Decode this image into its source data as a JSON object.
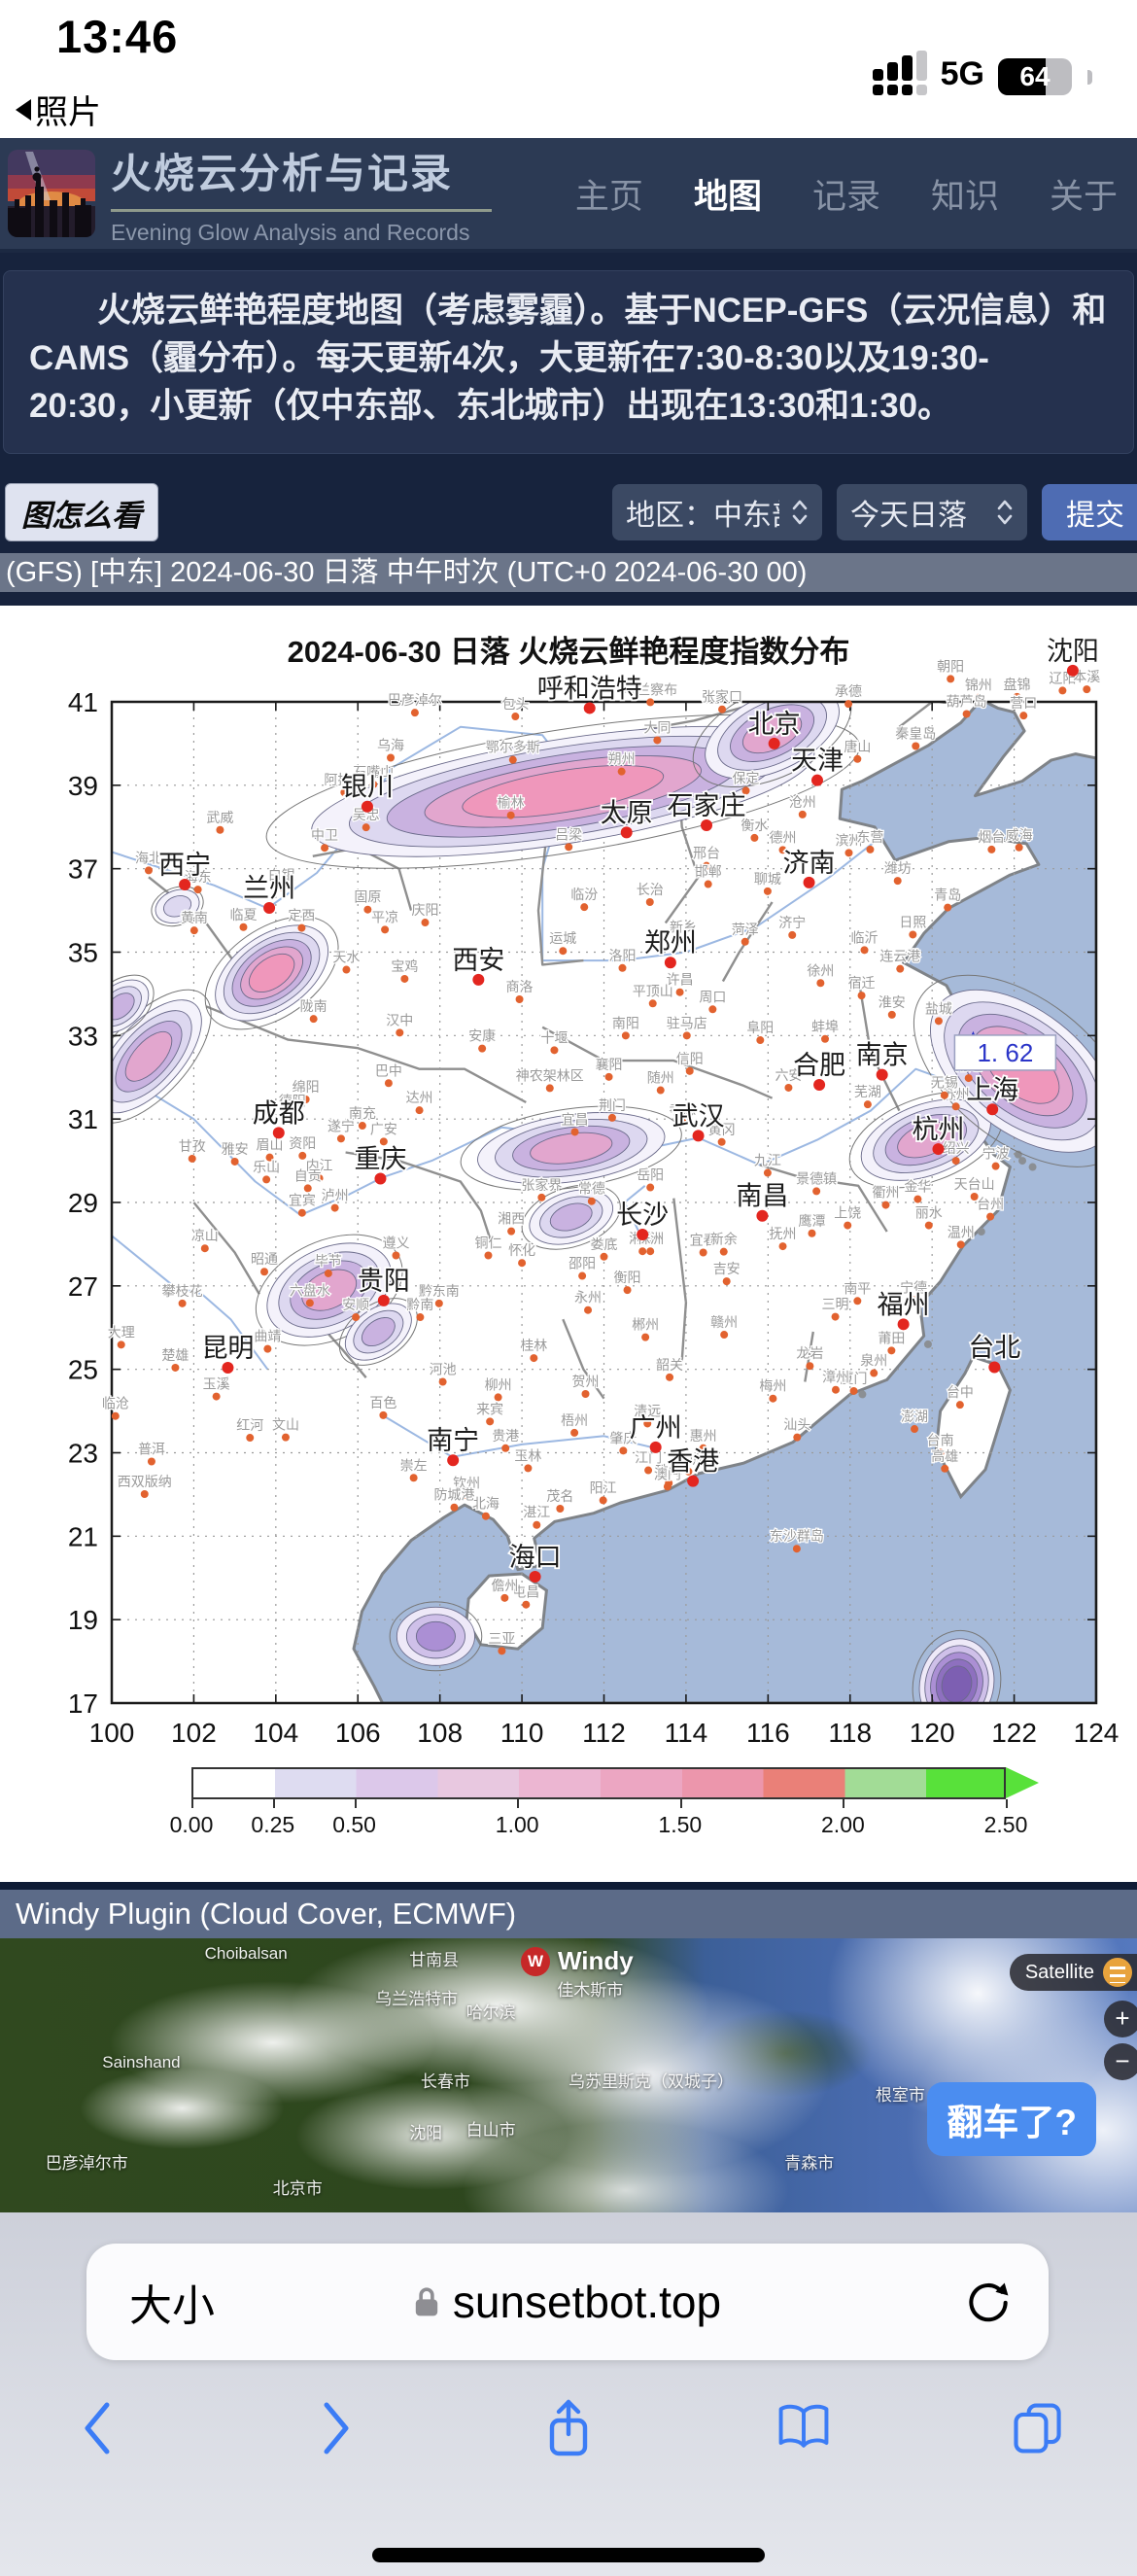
{
  "status_bar": {
    "time": "13:46",
    "back_app": "照片",
    "network": "5G",
    "battery": "64"
  },
  "header": {
    "site_title": "火烧云分析与记录",
    "site_subtitle": "Evening Glow Analysis and Records",
    "nav": [
      {
        "label": "主页",
        "active": false
      },
      {
        "label": "地图",
        "active": true
      },
      {
        "label": "记录",
        "active": false
      },
      {
        "label": "知识",
        "active": false
      },
      {
        "label": "关于",
        "active": false
      }
    ]
  },
  "notice": {
    "text": "火烧云鲜艳程度地图（考虑雾霾）。基于NCEP-GFS（云况信息）和CAMS（霾分布）。每天更新4次，大更新在7:30-8:30以及19:30-20:30，小更新（仅中东部、东北城市）出现在13:30和1:30。"
  },
  "controls": {
    "how_to_read": "图怎么看",
    "region_select": "地区：中东部",
    "time_select": "今天日落",
    "submit": "提交"
  },
  "status_line": {
    "text": "(GFS) [中东] 2024-06-30 日落 中午时次 (UTC+0 2024-06-30 00)"
  },
  "chart_data": {
    "type": "heatmap",
    "subtype": "contour-index-map",
    "title": "2024-06-30  日落  火烧云鲜艳程度指数分布",
    "xlabel": "",
    "ylabel": "",
    "lon_range": [
      100,
      124
    ],
    "lat_range": [
      17,
      41
    ],
    "lon_ticks": [
      100,
      102,
      104,
      106,
      108,
      110,
      112,
      114,
      116,
      118,
      120,
      122,
      124
    ],
    "lat_ticks": [
      41,
      39,
      37,
      35,
      33,
      31,
      29,
      27,
      25,
      23,
      21,
      19,
      17
    ],
    "grid": true,
    "colorbar": {
      "tick_labels": [
        "0.00",
        "0.25",
        "0.50",
        "1.00",
        "1.50",
        "2.00",
        "2.50"
      ],
      "tick_values": [
        0,
        0.25,
        0.5,
        1.0,
        1.5,
        2.0,
        2.5
      ],
      "max": 2.5,
      "segment_colors": [
        "#ffffff",
        "#dedcf1",
        "#dcc8ea",
        "#e8c8e0",
        "#ecb6d2",
        "#eca6c2",
        "#ec96ac",
        "#ea8078",
        "#a2dc96",
        "#58e13a"
      ]
    },
    "annotation": {
      "text": "1. 62",
      "lon": 120.55,
      "lat": 32.45,
      "marker_lon": 121.0,
      "marker_lat": 32.78
    },
    "major_cities": [
      [
        "沈阳",
        123.43,
        41.75
      ],
      [
        "呼和浩特",
        111.65,
        40.85
      ],
      [
        "北京",
        116.15,
        40.0
      ],
      [
        "天津",
        117.2,
        39.12
      ],
      [
        "银川",
        106.23,
        38.49
      ],
      [
        "太原",
        112.55,
        37.87
      ],
      [
        "石家庄",
        114.5,
        38.04
      ],
      [
        "济南",
        117.0,
        36.67
      ],
      [
        "西宁",
        101.78,
        36.62
      ],
      [
        "兰州",
        103.84,
        36.06
      ],
      [
        "郑州",
        113.62,
        34.75
      ],
      [
        "西安",
        108.94,
        34.34
      ],
      [
        "合肥",
        117.25,
        31.82
      ],
      [
        "南京",
        118.78,
        32.06
      ],
      [
        "上海",
        121.47,
        31.23
      ],
      [
        "杭州",
        120.15,
        30.28
      ],
      [
        "武汉",
        114.3,
        30.6
      ],
      [
        "成都",
        104.07,
        30.67
      ],
      [
        "重庆",
        106.55,
        29.57
      ],
      [
        "长沙",
        112.94,
        28.23
      ],
      [
        "南昌",
        115.86,
        28.68
      ],
      [
        "贵阳",
        106.63,
        26.65
      ],
      [
        "昆明",
        102.83,
        25.04
      ],
      [
        "福州",
        119.3,
        26.08
      ],
      [
        "台北",
        121.52,
        25.05
      ],
      [
        "南宁",
        108.32,
        22.82
      ],
      [
        "广州",
        113.26,
        23.13
      ],
      [
        "香港",
        114.17,
        22.32
      ],
      [
        "海口",
        110.32,
        20.03
      ]
    ],
    "minor_cities": [
      [
        "朝阳",
        120.45,
        41.55
      ],
      [
        "锦州",
        121.13,
        41.1
      ],
      [
        "盘锦",
        122.07,
        41.12
      ],
      [
        "辽阳",
        123.18,
        41.27
      ],
      [
        "本溪",
        123.77,
        41.3
      ],
      [
        "葫芦岛",
        120.84,
        40.71
      ],
      [
        "营口",
        122.23,
        40.67
      ],
      [
        "乌兰察布",
        113.13,
        40.99
      ],
      [
        "张家口",
        114.88,
        40.82
      ],
      [
        "承德",
        117.96,
        40.95
      ],
      [
        "包头",
        109.84,
        40.65
      ],
      [
        "巴彦淖尔",
        107.39,
        40.74
      ],
      [
        "秦皇岛",
        119.6,
        39.94
      ],
      [
        "唐山",
        118.18,
        39.63
      ],
      [
        "大同",
        113.3,
        40.08
      ],
      [
        "鄂尔多斯",
        109.78,
        39.61
      ],
      [
        "乌海",
        106.8,
        39.66
      ],
      [
        "石嘴山",
        106.38,
        39.02
      ],
      [
        "阿拉善",
        105.67,
        38.83
      ],
      [
        "榆林",
        109.73,
        38.28
      ],
      [
        "朔州",
        112.43,
        39.33
      ],
      [
        "保定",
        115.46,
        38.87
      ],
      [
        "沧州",
        116.84,
        38.3
      ],
      [
        "武威",
        102.64,
        37.93
      ],
      [
        "中卫",
        105.19,
        37.5
      ],
      [
        "吴忠",
        106.2,
        37.99
      ],
      [
        "衡水",
        115.67,
        37.74
      ],
      [
        "德州",
        116.36,
        37.45
      ],
      [
        "滨州",
        117.97,
        37.38
      ],
      [
        "东营",
        118.49,
        37.46
      ],
      [
        "烟台",
        121.45,
        37.46
      ],
      [
        "威海",
        122.12,
        37.51
      ],
      [
        "吕梁",
        111.14,
        37.52
      ],
      [
        "临汾",
        111.52,
        36.08
      ],
      [
        "长治",
        113.12,
        36.2
      ],
      [
        "邢台",
        114.5,
        37.07
      ],
      [
        "邯郸",
        114.54,
        36.63
      ],
      [
        "聊城",
        115.99,
        36.46
      ],
      [
        "潍坊",
        119.16,
        36.71
      ],
      [
        "青岛",
        120.38,
        36.07
      ],
      [
        "海北",
        100.9,
        36.96
      ],
      [
        "海东",
        102.1,
        36.5
      ],
      [
        "白银",
        104.14,
        36.55
      ],
      [
        "固原",
        106.24,
        36.02
      ],
      [
        "庆阳",
        107.64,
        35.71
      ],
      [
        "运城",
        111.0,
        35.03
      ],
      [
        "济宁",
        116.59,
        35.41
      ],
      [
        "日照",
        119.53,
        35.42
      ],
      [
        "临沂",
        118.35,
        35.05
      ],
      [
        "菏泽",
        115.44,
        35.25
      ],
      [
        "新乡",
        113.93,
        35.3
      ],
      [
        "黄南",
        102.01,
        35.52
      ],
      [
        "临夏",
        103.21,
        35.6
      ],
      [
        "定西",
        104.63,
        35.58
      ],
      [
        "平凉",
        106.66,
        35.54
      ],
      [
        "洛阳",
        112.45,
        34.62
      ],
      [
        "许昌",
        113.85,
        34.04
      ],
      [
        "周口",
        114.65,
        33.63
      ],
      [
        "徐州",
        117.28,
        34.26
      ],
      [
        "连云港",
        119.22,
        34.6
      ],
      [
        "宿迁",
        118.28,
        33.96
      ],
      [
        "淮安",
        119.02,
        33.5
      ],
      [
        "盐城",
        120.16,
        33.35
      ],
      [
        "天水",
        105.72,
        34.58
      ],
      [
        "宝鸡",
        107.14,
        34.36
      ],
      [
        "商洛",
        109.94,
        33.87
      ],
      [
        "平顶山",
        113.19,
        33.77
      ],
      [
        "南阳",
        112.53,
        33.0
      ],
      [
        "驻马店",
        114.02,
        33.0
      ],
      [
        "陇南",
        104.92,
        33.4
      ],
      [
        "汉中",
        107.02,
        33.07
      ],
      [
        "安康",
        109.03,
        32.69
      ],
      [
        "信阳",
        114.09,
        32.15
      ],
      [
        "阜阳",
        115.81,
        32.89
      ],
      [
        "蚌埠",
        117.39,
        32.92
      ],
      [
        "襄阳",
        112.12,
        32.01
      ],
      [
        "十堰",
        110.79,
        32.65
      ],
      [
        "随州",
        113.38,
        31.69
      ],
      [
        "神农架林区",
        110.68,
        31.74
      ],
      [
        "南通",
        120.89,
        31.98
      ],
      [
        "苏州",
        120.58,
        31.3
      ],
      [
        "无锡",
        120.3,
        31.57
      ],
      [
        "芜湖",
        118.43,
        31.35
      ],
      [
        "六安",
        116.5,
        31.75
      ],
      [
        "巴中",
        106.75,
        31.86
      ],
      [
        "达州",
        107.5,
        31.21
      ],
      [
        "绵阳",
        104.73,
        31.47
      ],
      [
        "德阳",
        104.4,
        31.13
      ],
      [
        "宜昌",
        111.29,
        30.69
      ],
      [
        "荆门",
        112.2,
        31.03
      ],
      [
        "孝感",
        113.92,
        30.92
      ],
      [
        "黄冈",
        114.87,
        30.45
      ],
      [
        "南充",
        106.11,
        30.84
      ],
      [
        "广安",
        106.63,
        30.46
      ],
      [
        "遂宁",
        105.59,
        30.53
      ],
      [
        "资阳",
        104.65,
        30.12
      ],
      [
        "眉山",
        103.85,
        30.08
      ],
      [
        "雅安",
        103.0,
        29.98
      ],
      [
        "甘孜",
        101.96,
        30.05
      ],
      [
        "乐山",
        103.77,
        29.55
      ],
      [
        "内江",
        105.06,
        29.58
      ],
      [
        "自贡",
        104.78,
        29.34
      ],
      [
        "泸州",
        105.44,
        28.87
      ],
      [
        "宜宾",
        104.64,
        28.75
      ],
      [
        "岳阳",
        113.13,
        29.36
      ],
      [
        "常德",
        111.7,
        29.03
      ],
      [
        "张家界",
        110.48,
        29.12
      ],
      [
        "九江",
        115.99,
        29.71
      ],
      [
        "景德镇",
        117.18,
        29.27
      ],
      [
        "上饶",
        117.94,
        28.45
      ],
      [
        "衢州",
        118.87,
        28.94
      ],
      [
        "金华",
        119.65,
        29.08
      ],
      [
        "绍兴",
        120.58,
        30.0
      ],
      [
        "宁波",
        121.55,
        29.87
      ],
      [
        "台州",
        121.42,
        28.66
      ],
      [
        "丽水",
        119.92,
        28.45
      ],
      [
        "温州",
        120.7,
        27.99
      ],
      [
        "天台山",
        121.03,
        29.14
      ],
      [
        "湘西",
        109.74,
        28.31
      ],
      [
        "怀化",
        110.0,
        27.55
      ],
      [
        "娄底",
        112.0,
        27.7
      ],
      [
        "湘潭",
        112.94,
        27.83
      ],
      [
        "株洲",
        113.13,
        27.83
      ],
      [
        "衡阳",
        112.57,
        26.9
      ],
      [
        "邵阳",
        111.47,
        27.24
      ],
      [
        "永州",
        111.61,
        26.42
      ],
      [
        "郴州",
        113.01,
        25.77
      ],
      [
        "赣州",
        114.93,
        25.83
      ],
      [
        "吉安",
        114.99,
        27.11
      ],
      [
        "宜春",
        114.42,
        27.8
      ],
      [
        "新余",
        114.92,
        27.82
      ],
      [
        "抚州",
        116.36,
        27.95
      ],
      [
        "鹰潭",
        117.07,
        28.26
      ],
      [
        "南平",
        118.18,
        26.64
      ],
      [
        "三明",
        117.64,
        26.26
      ],
      [
        "宁德",
        119.55,
        26.66
      ],
      [
        "莆田",
        119.01,
        25.45
      ],
      [
        "泉州",
        118.58,
        24.91
      ],
      [
        "厦门",
        118.09,
        24.48
      ],
      [
        "漳州",
        117.65,
        24.51
      ],
      [
        "龙岩",
        117.02,
        25.08
      ],
      [
        "梅州",
        116.12,
        24.3
      ],
      [
        "汕头",
        116.71,
        23.37
      ],
      [
        "惠州",
        114.42,
        23.11
      ],
      [
        "深圳",
        114.06,
        22.55
      ],
      [
        "珠海",
        113.58,
        22.27
      ],
      [
        "澳门",
        113.55,
        22.19
      ],
      [
        "江门",
        113.08,
        22.58
      ],
      [
        "阳江",
        111.98,
        21.86
      ],
      [
        "茂名",
        110.93,
        21.66
      ],
      [
        "湛江",
        110.36,
        21.27
      ],
      [
        "北海",
        109.12,
        21.48
      ],
      [
        "钦州",
        108.65,
        21.98
      ],
      [
        "防城港",
        108.35,
        21.69
      ],
      [
        "崇左",
        107.36,
        22.4
      ],
      [
        "玉林",
        110.15,
        22.63
      ],
      [
        "贵港",
        109.6,
        23.11
      ],
      [
        "梧州",
        111.28,
        23.48
      ],
      [
        "肇庆",
        112.47,
        23.05
      ],
      [
        "清远",
        113.06,
        23.7
      ],
      [
        "韶关",
        113.6,
        24.81
      ],
      [
        "桂林",
        110.29,
        25.27
      ],
      [
        "柳州",
        109.42,
        24.33
      ],
      [
        "河池",
        108.07,
        24.7
      ],
      [
        "百色",
        106.62,
        23.9
      ],
      [
        "来宾",
        109.22,
        23.75
      ],
      [
        "贺州",
        111.55,
        24.41
      ],
      [
        "黔东南",
        107.98,
        26.58
      ],
      [
        "黔南",
        107.52,
        26.25
      ],
      [
        "遵义",
        106.93,
        27.73
      ],
      [
        "铜仁",
        109.18,
        27.73
      ],
      [
        "六盘水",
        104.83,
        26.59
      ],
      [
        "安顺",
        105.95,
        26.25
      ],
      [
        "毕节",
        105.28,
        27.3
      ],
      [
        "昭通",
        103.72,
        27.34
      ],
      [
        "曲靖",
        103.8,
        25.49
      ],
      [
        "玉溪",
        102.55,
        24.35
      ],
      [
        "楚雄",
        101.55,
        25.04
      ],
      [
        "大理",
        100.23,
        25.59
      ],
      [
        "攀枝花",
        101.72,
        26.58
      ],
      [
        "凉山",
        102.27,
        27.9
      ],
      [
        "临沧",
        100.09,
        23.88
      ],
      [
        "普洱",
        100.97,
        22.79
      ],
      [
        "西双版纳",
        100.8,
        22.01
      ],
      [
        "红河",
        103.37,
        23.36
      ],
      [
        "文山",
        104.24,
        23.37
      ],
      [
        "台中",
        120.68,
        24.15
      ],
      [
        "台南",
        120.2,
        23.0
      ],
      [
        "高雄",
        120.31,
        22.62
      ],
      [
        "澎湖",
        119.57,
        23.57
      ],
      [
        "屯昌",
        110.1,
        19.36
      ],
      [
        "三亚",
        109.51,
        18.25
      ],
      [
        "儋州",
        109.58,
        19.52
      ],
      [
        "东沙群岛",
        116.7,
        20.7
      ]
    ],
    "contour_regions": [
      {
        "lon": 111.0,
        "lat": 38.85,
        "rx": 6.2,
        "ry": 1.25,
        "rot": -9,
        "levels": 5
      },
      {
        "lon": 116.1,
        "lat": 40.25,
        "rx": 1.75,
        "ry": 0.9,
        "rot": -25,
        "levels": 4
      },
      {
        "lon": 120.35,
        "lat": 41.5,
        "rx": 0.55,
        "ry": 0.45,
        "rot": 0,
        "levels": 2,
        "palette": "purple"
      },
      {
        "lon": 103.9,
        "lat": 34.5,
        "rx": 1.55,
        "ry": 0.9,
        "rot": -35,
        "levels": 5
      },
      {
        "lon": 100.9,
        "lat": 32.5,
        "rx": 1.7,
        "ry": 0.8,
        "rot": -48,
        "levels": 4
      },
      {
        "lon": 100.2,
        "lat": 33.7,
        "rx": 0.8,
        "ry": 0.5,
        "rot": -40,
        "levels": 3
      },
      {
        "lon": 101.6,
        "lat": 36.1,
        "rx": 0.55,
        "ry": 0.38,
        "rot": -20,
        "levels": 2
      },
      {
        "lon": 111.2,
        "lat": 30.3,
        "rx": 2.3,
        "ry": 0.8,
        "rot": -8,
        "levels": 4
      },
      {
        "lon": 111.2,
        "lat": 28.65,
        "rx": 1.05,
        "ry": 0.6,
        "rot": -18,
        "levels": 3
      },
      {
        "lon": 119.85,
        "lat": 30.5,
        "rx": 1.65,
        "ry": 0.85,
        "rot": -20,
        "levels": 4
      },
      {
        "lon": 122.2,
        "lat": 32.15,
        "rx": 2.6,
        "ry": 1.45,
        "rot": 38,
        "levels": 5
      },
      {
        "lon": 105.3,
        "lat": 26.9,
        "rx": 1.6,
        "ry": 1.0,
        "rot": -25,
        "levels": 4
      },
      {
        "lon": 106.5,
        "lat": 25.9,
        "rx": 0.9,
        "ry": 0.55,
        "rot": -35,
        "levels": 3
      },
      {
        "lon": 107.9,
        "lat": 18.6,
        "rx": 0.95,
        "ry": 0.7,
        "rot": 0,
        "levels": 3,
        "palette": "purple"
      },
      {
        "lon": 120.6,
        "lat": 17.45,
        "rx": 0.9,
        "ry": 1.1,
        "rot": 12,
        "levels": 5,
        "palette": "purple"
      }
    ]
  },
  "windy": {
    "title": "Windy Plugin (Cloud Cover, ECMWF)",
    "brand": "Windy",
    "satellite_button": "Satellite",
    "zoom_in": "+",
    "zoom_out": "−",
    "action_button": "翻车了?",
    "labels": [
      [
        "Choibalsan",
        18,
        2
      ],
      [
        "甘南县",
        36,
        3
      ],
      [
        "乌兰浩特市",
        33,
        17
      ],
      [
        "佳木斯市",
        49,
        14
      ],
      [
        "哈尔滨",
        41,
        22
      ],
      [
        "Sainshand",
        9,
        42
      ],
      [
        "长春市",
        37,
        47
      ],
      [
        "乌苏里斯克（双城子）",
        50,
        47
      ],
      [
        "根室市",
        77,
        52
      ],
      [
        "沈阳",
        36,
        66
      ],
      [
        "白山市",
        41,
        65
      ],
      [
        "青森市",
        69,
        77
      ],
      [
        "北京市",
        24,
        86
      ],
      [
        "巴彦淖尔市",
        4,
        77
      ]
    ]
  },
  "browser": {
    "page_zoom_label": "大小",
    "url": "sunsetbot.top"
  }
}
